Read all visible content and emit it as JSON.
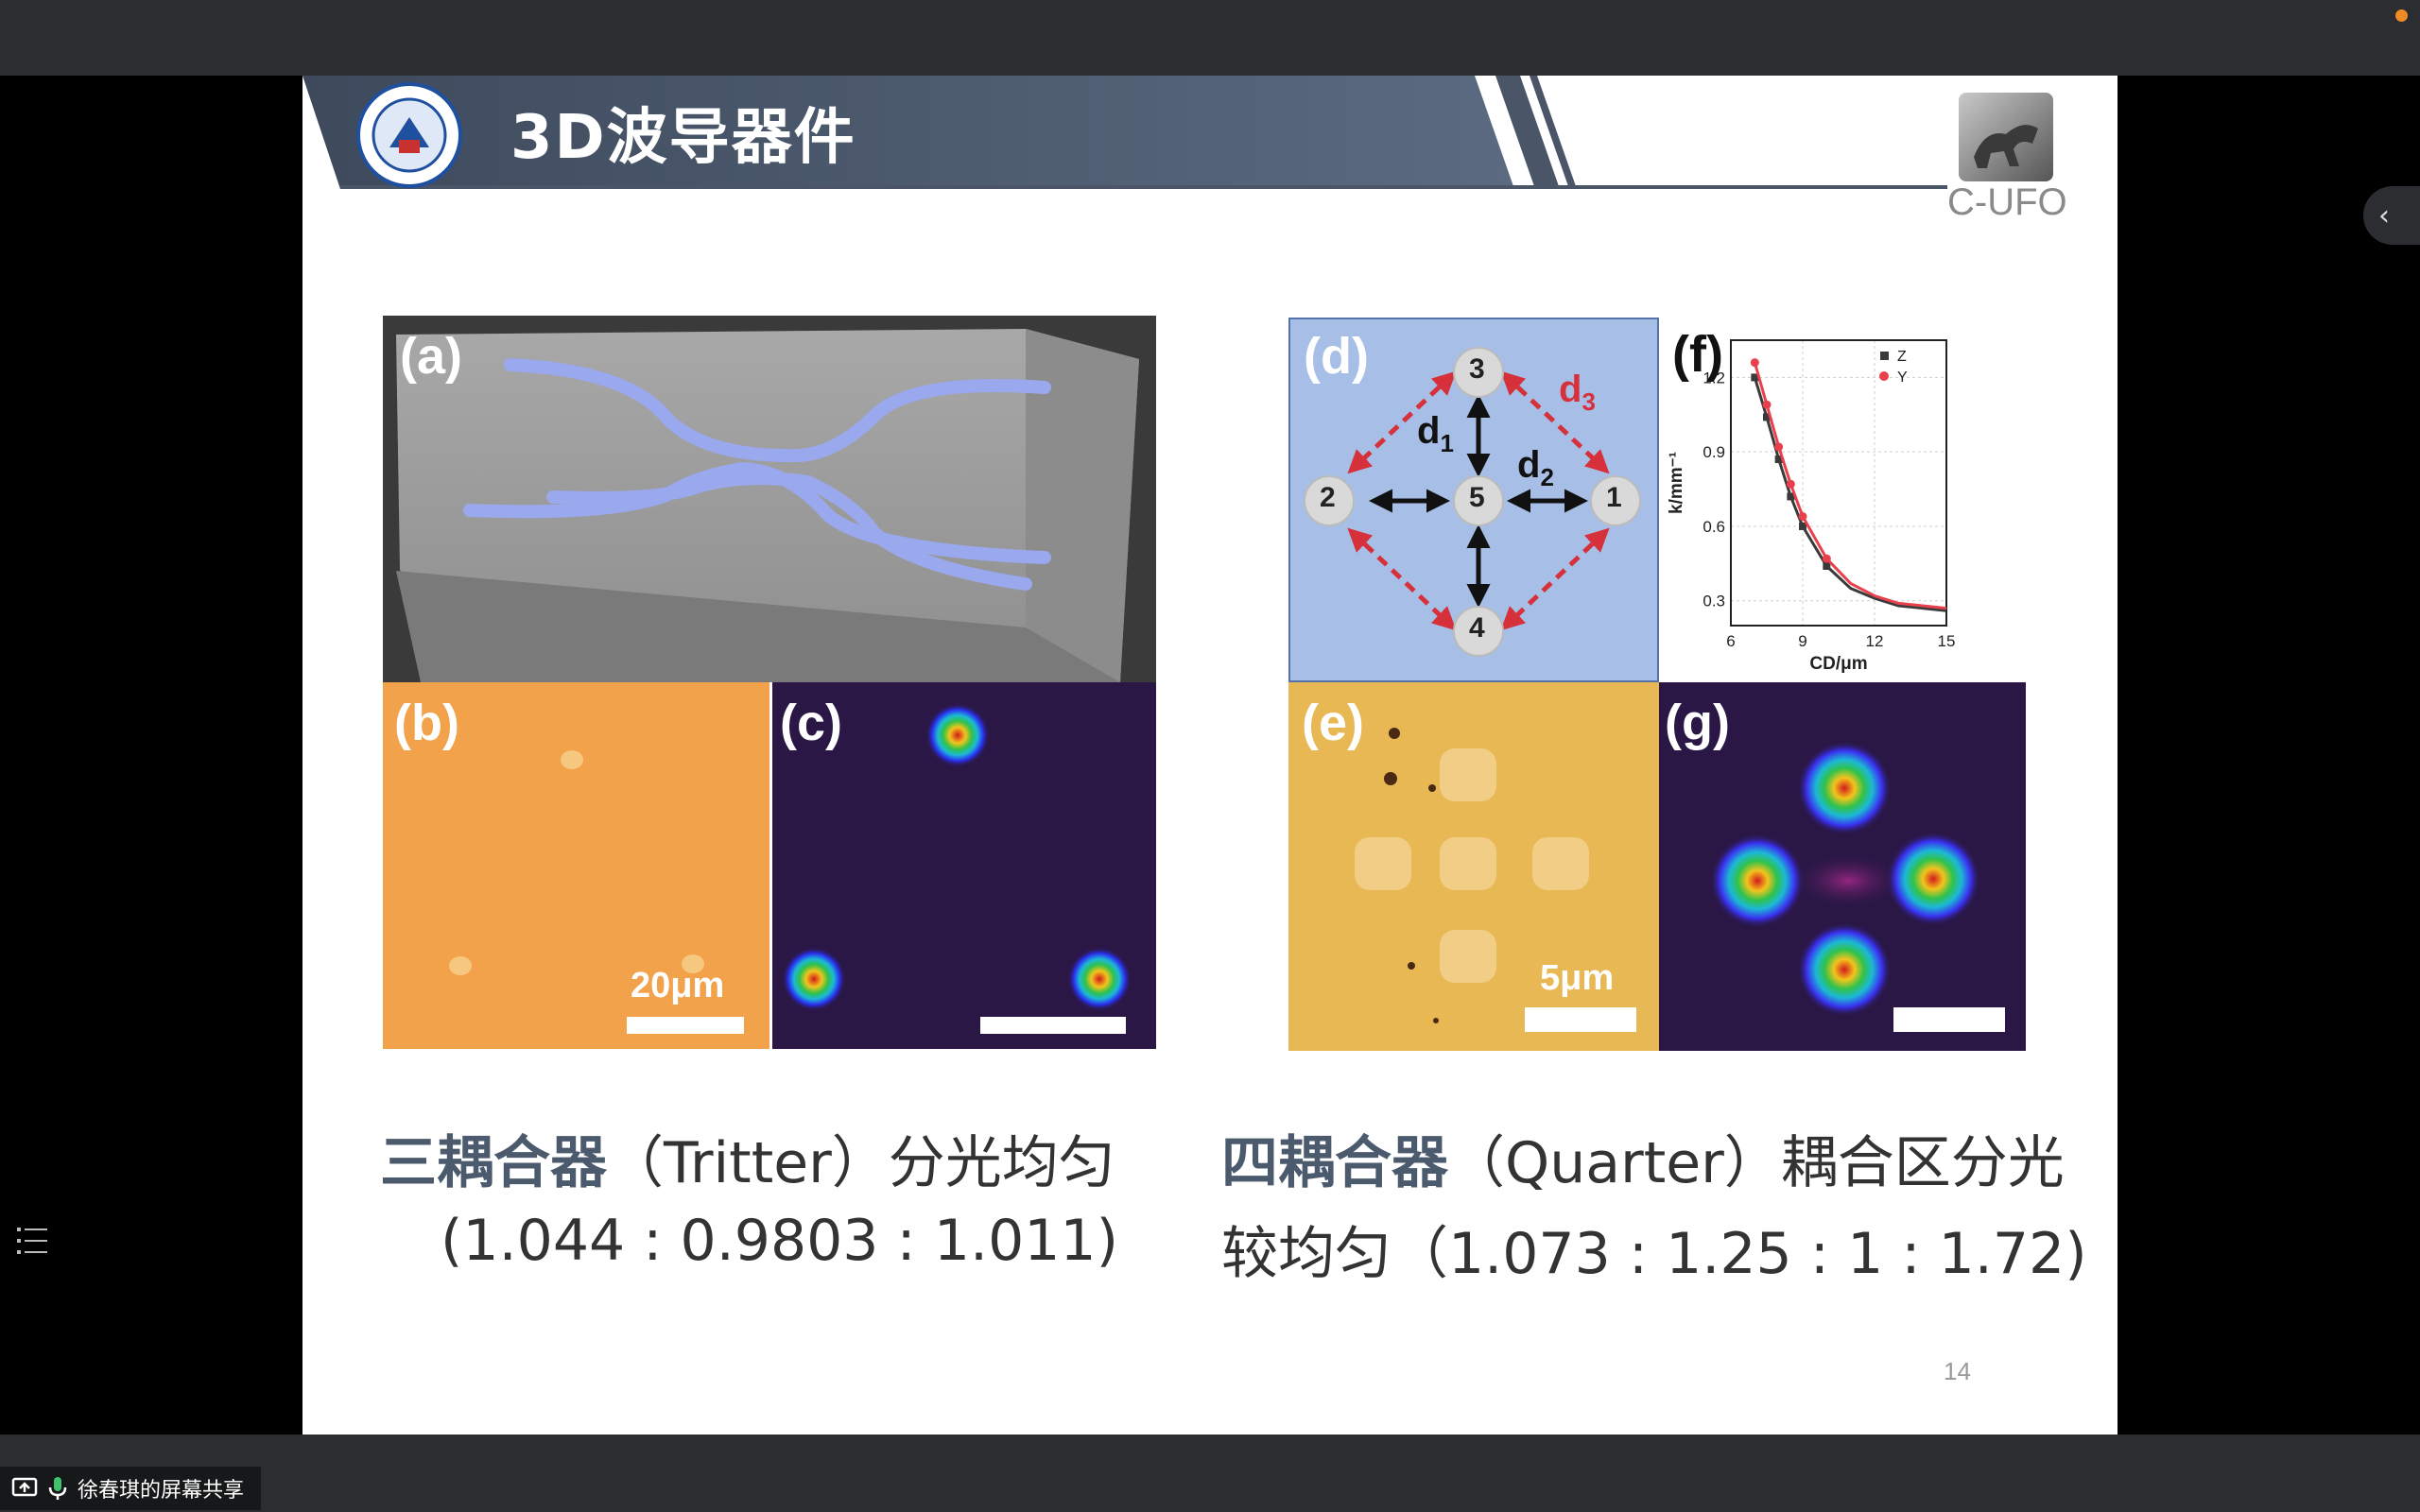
{
  "slide": {
    "title": "3D波导器件",
    "logo_text": "C-UFO",
    "page_number": "14"
  },
  "panels": {
    "a": {
      "label": "(a)"
    },
    "b": {
      "label": "(b)",
      "scale": "20μm"
    },
    "c": {
      "label": "(c)"
    },
    "d": {
      "label": "(d)",
      "nodes": [
        "1",
        "2",
        "3",
        "4",
        "5"
      ],
      "d1": "d",
      "d1_sub": "1",
      "d2": "d",
      "d2_sub": "2",
      "d3": "d",
      "d3_sub": "3"
    },
    "e": {
      "label": "(e)",
      "scale": "5μm"
    },
    "f": {
      "label": "(f)"
    },
    "g": {
      "label": "(g)"
    }
  },
  "chart_data": {
    "type": "scatter",
    "xlabel": "CD/μm",
    "ylabel": "k/mm⁻¹",
    "xlim": [
      6,
      15
    ],
    "ylim": [
      0.2,
      1.35
    ],
    "xticks": [
      "6",
      "9",
      "12",
      "15"
    ],
    "yticks": [
      "0.3",
      "0.6",
      "0.9",
      "1.2"
    ],
    "grid": true,
    "legend": "top-right",
    "series": [
      {
        "name": "Z",
        "color": "#3a3a3a",
        "points": [
          [
            7,
            1.2
          ],
          [
            7.5,
            1.04
          ],
          [
            8,
            0.87
          ],
          [
            8.5,
            0.72
          ],
          [
            9,
            0.6
          ],
          [
            10,
            0.44
          ],
          [
            11,
            0.35
          ],
          [
            12,
            0.31
          ],
          [
            13,
            0.28
          ],
          [
            14,
            0.27
          ],
          [
            15,
            0.26
          ]
        ]
      },
      {
        "name": "Y",
        "color": "#e8414d",
        "points": [
          [
            7,
            1.26
          ],
          [
            7.5,
            1.09
          ],
          [
            8,
            0.92
          ],
          [
            8.5,
            0.77
          ],
          [
            9,
            0.64
          ],
          [
            10,
            0.47
          ],
          [
            11,
            0.37
          ],
          [
            12,
            0.32
          ],
          [
            13,
            0.29
          ],
          [
            14,
            0.28
          ],
          [
            15,
            0.27
          ]
        ]
      }
    ]
  },
  "captions": {
    "left_bold": "三耦合器",
    "left_rest": "（Tritter）分光均匀",
    "left_line2": "(1.044 : 0.9803 : 1.011)",
    "right_bold": "四耦合器",
    "right_rest": "（Quarter）耦合区分光",
    "right_line2": "较均匀（1.073 : 1.25 : 1 : 1.72)"
  },
  "ui": {
    "sharing_label": "徐春琪的屏幕共享"
  },
  "colors": {
    "banner": "#4a5668",
    "panel_d_bg": "#a7bfe6",
    "panel_b_bg": "#f2a24b",
    "panel_e_bg": "#e8b855",
    "field_bg": "#2a1746",
    "accent_dot": "#f08a24"
  }
}
